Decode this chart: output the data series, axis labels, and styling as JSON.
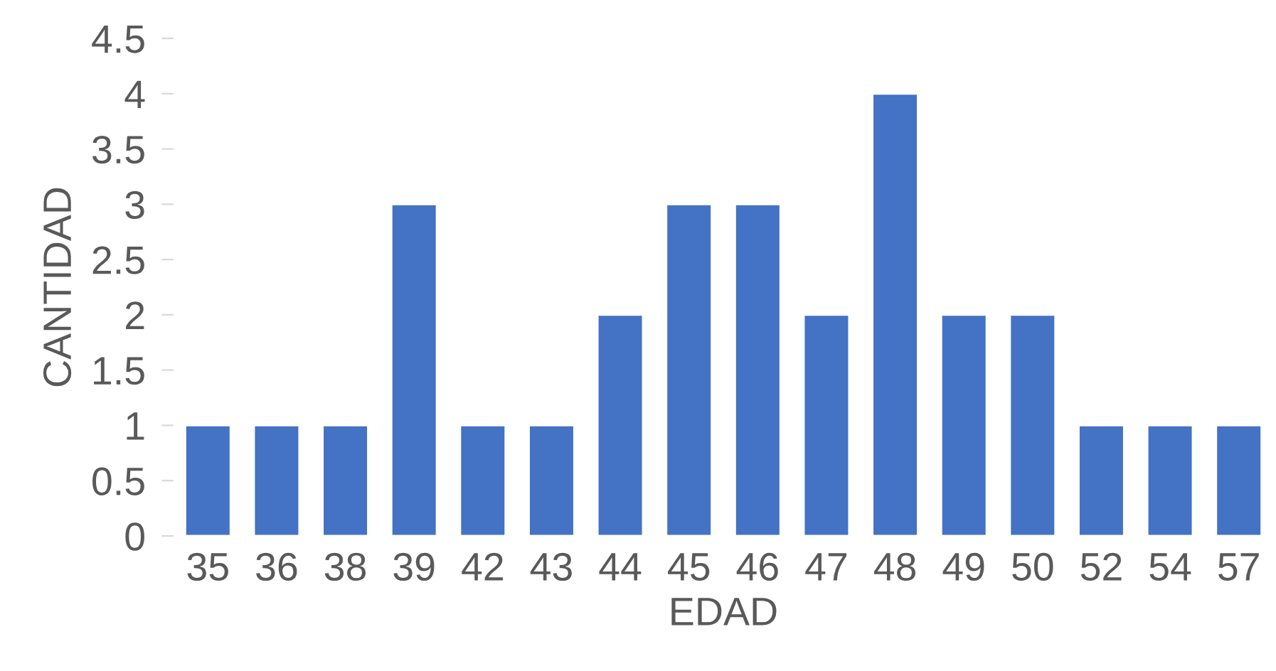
{
  "chart_data": {
    "type": "bar",
    "xlabel": "EDAD",
    "ylabel": "CANTIDAD",
    "categories": [
      "35",
      "36",
      "38",
      "39",
      "42",
      "43",
      "44",
      "45",
      "46",
      "47",
      "48",
      "49",
      "50",
      "52",
      "54",
      "57"
    ],
    "values": [
      1,
      1,
      1,
      3,
      1,
      1,
      2,
      3,
      3,
      2,
      4,
      2,
      2,
      1,
      1,
      1
    ],
    "color": "#4472c4",
    "ylim": [
      0,
      4.5
    ],
    "yticks": [
      0,
      0.5,
      1,
      1.5,
      2,
      2.5,
      3,
      3.5,
      4,
      4.5
    ],
    "grid": false,
    "legend": false
  }
}
